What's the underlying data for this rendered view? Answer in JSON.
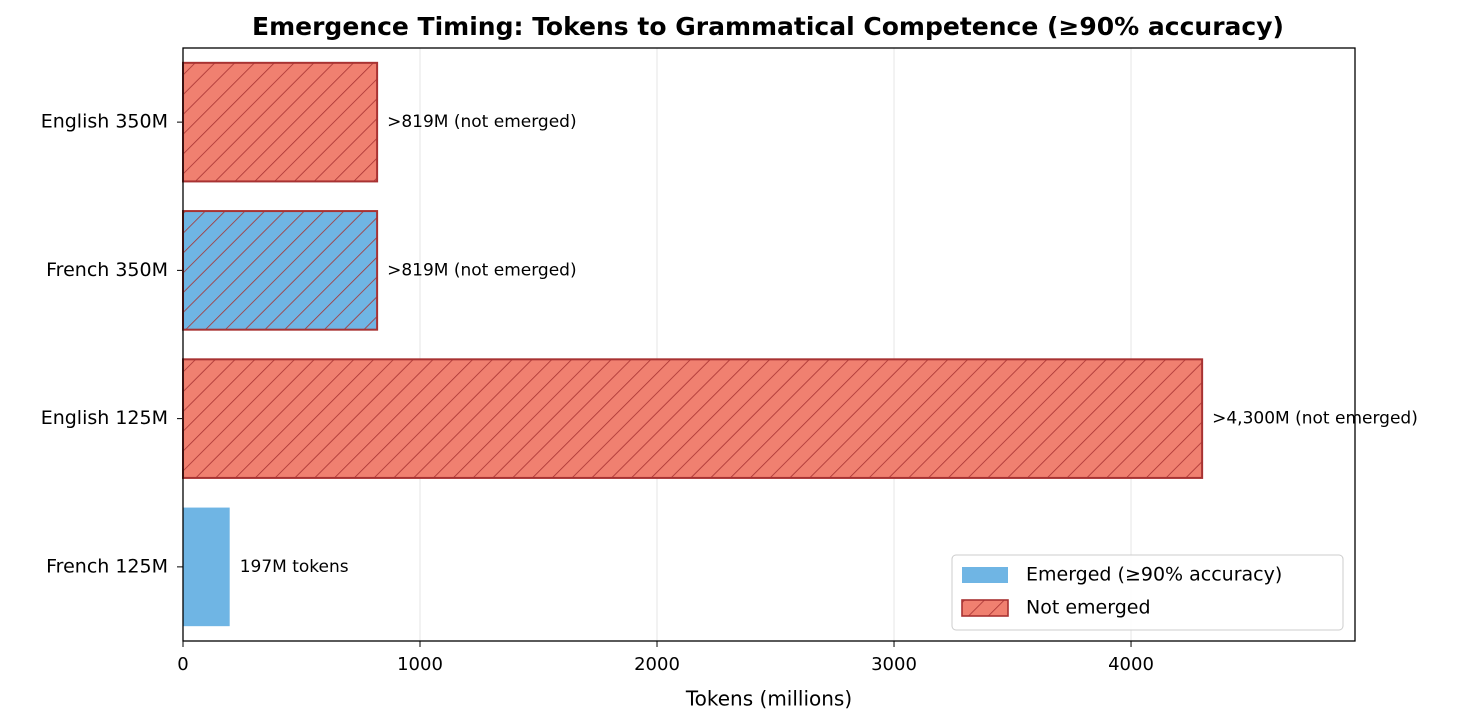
{
  "chart_data": {
    "type": "barh",
    "title": "Emergence Timing: Tokens to Grammatical Competence (≥90% accuracy)",
    "xlabel": "Tokens (millions)",
    "categories": [
      "English 350M",
      "French 350M",
      "English 125M",
      "French 125M"
    ],
    "values": [
      819,
      819,
      4300,
      197
    ],
    "value_labels": [
      ">819M (not emerged)",
      ">819M (not emerged)",
      ">4,300M (not emerged)",
      "197M tokens"
    ],
    "colors": [
      "#f08070",
      "#6fb5e4",
      "#f08070",
      "#6fb5e4"
    ],
    "hatched": [
      true,
      true,
      true,
      false
    ],
    "edge_color": "#a83232",
    "xlim": [
      0,
      4945
    ],
    "xticks": [
      0,
      1000,
      2000,
      3000,
      4000
    ],
    "grid": true,
    "legend_position": "lower right",
    "legend": [
      {
        "name": "Emerged (≥90% accuracy)",
        "color": "#6fb5e4",
        "hatched": false
      },
      {
        "name": "Not emerged",
        "color": "#f08070",
        "hatched": true
      }
    ]
  }
}
